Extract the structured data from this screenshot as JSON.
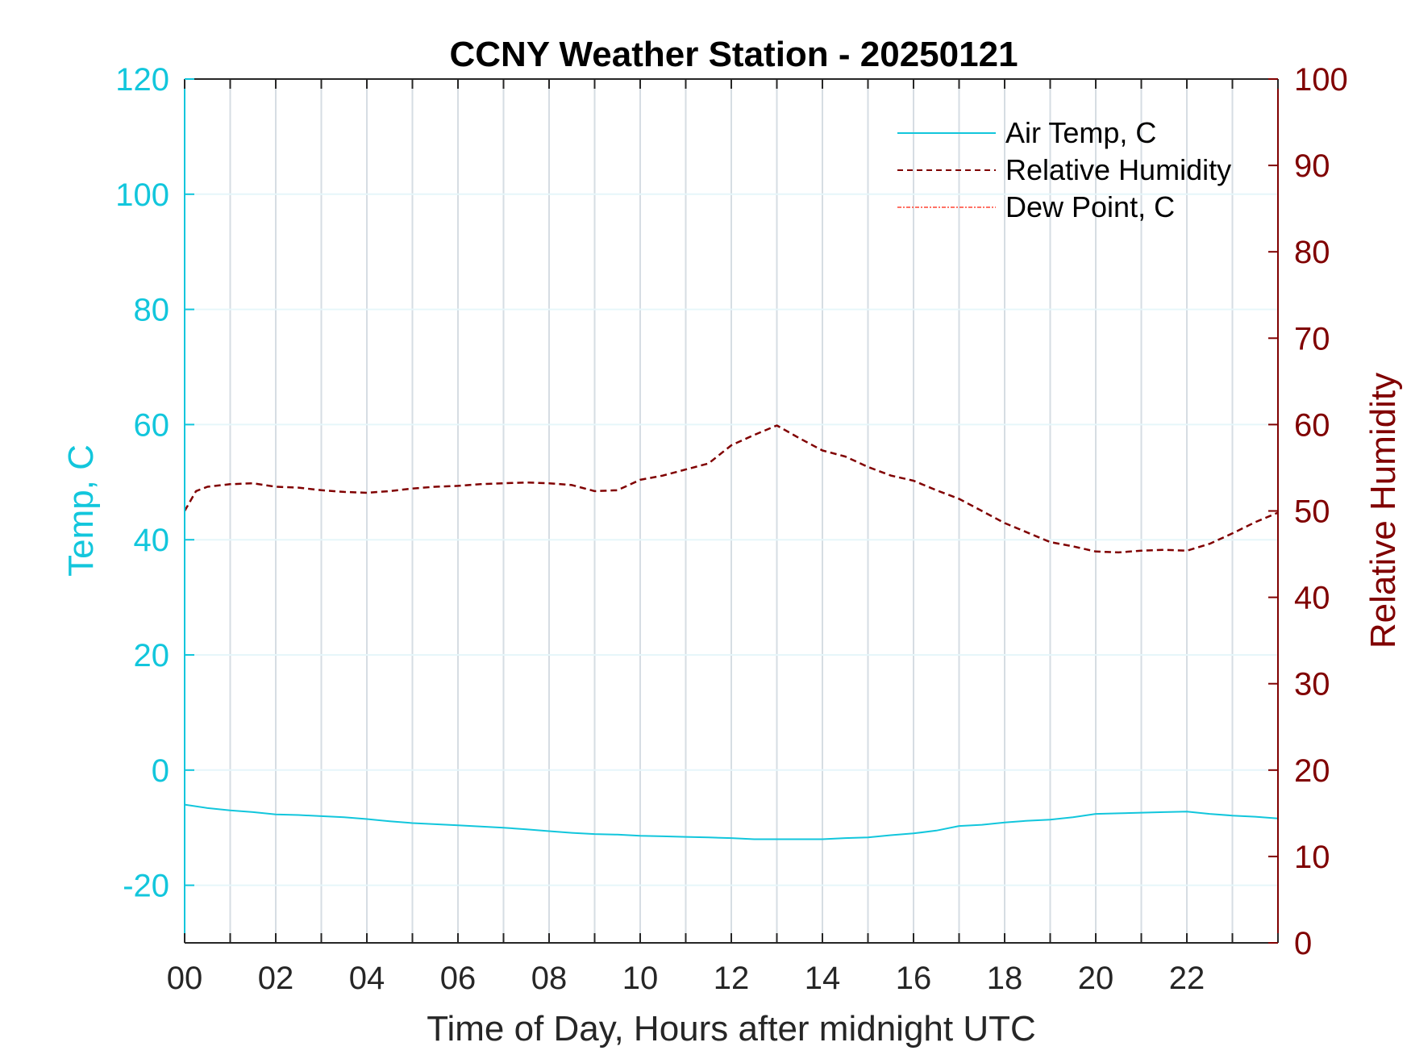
{
  "chart_data": {
    "type": "line",
    "title": "CCNY Weather Station - 20250121",
    "xlabel": "Time of Day, Hours after midnight UTC",
    "ylabel_left": "Temp, C",
    "ylabel_right": "Relative Humidity",
    "xlim": [
      0,
      24
    ],
    "ylim_left": [
      -30,
      120
    ],
    "ylim_right": [
      0,
      100
    ],
    "x_ticks": [
      "00",
      "02",
      "04",
      "06",
      "08",
      "10",
      "12",
      "14",
      "16",
      "18",
      "20",
      "22"
    ],
    "y_ticks_left": [
      "-20",
      "0",
      "20",
      "40",
      "60",
      "80",
      "100",
      "120"
    ],
    "y_ticks_right": [
      "0",
      "10",
      "20",
      "30",
      "40",
      "50",
      "60",
      "70",
      "80",
      "90",
      "100"
    ],
    "grid": true,
    "legend_position": "top-right",
    "colors": {
      "air_temp": "#12c6dc",
      "relative_humidity": "#800000",
      "dew_point": "#ff4433"
    },
    "series": [
      {
        "name": "Air Temp, C",
        "axis": "left",
        "style": "solid",
        "x": [
          0,
          0.5,
          1,
          1.5,
          2,
          2.5,
          3,
          3.5,
          4,
          4.5,
          5,
          5.5,
          6,
          6.5,
          7,
          7.5,
          8,
          8.5,
          9,
          9.5,
          10,
          10.5,
          11,
          11.5,
          12,
          12.5,
          13,
          13.5,
          14,
          14.5,
          15,
          15.5,
          16,
          16.5,
          17,
          17.5,
          18,
          18.5,
          19,
          19.5,
          20,
          20.5,
          21,
          21.5,
          22,
          22.5,
          23,
          23.5,
          24
        ],
        "values": [
          -6.0,
          -6.6,
          -7.0,
          -7.3,
          -7.7,
          -7.8,
          -8.0,
          -8.2,
          -8.5,
          -8.9,
          -9.2,
          -9.4,
          -9.6,
          -9.8,
          -10.0,
          -10.3,
          -10.6,
          -10.9,
          -11.1,
          -11.2,
          -11.4,
          -11.5,
          -11.6,
          -11.7,
          -11.8,
          -12.0,
          -12.0,
          -12.0,
          -12.0,
          -11.8,
          -11.7,
          -11.3,
          -11.0,
          -10.5,
          -9.7,
          -9.5,
          -9.1,
          -8.8,
          -8.6,
          -8.2,
          -7.6,
          -7.5,
          -7.4,
          -7.3,
          -7.2,
          -7.6,
          -7.9,
          -8.1,
          -8.4
        ]
      },
      {
        "name": "Relative Humidity",
        "axis": "right",
        "style": "dashed",
        "x": [
          0,
          0.25,
          0.5,
          1,
          1.5,
          2,
          2.5,
          3,
          3.5,
          4,
          4.5,
          5,
          5.5,
          6,
          6.5,
          7,
          7.5,
          8,
          8.5,
          9,
          9.5,
          10,
          10.5,
          11,
          11.5,
          12,
          12.5,
          13,
          13.5,
          14,
          14.5,
          15,
          15.5,
          16,
          16.5,
          17,
          17.5,
          18,
          18.5,
          19,
          19.5,
          20,
          20.5,
          21,
          21.5,
          22,
          22.5,
          23,
          23.5,
          24
        ],
        "values": [
          50.0,
          52.3,
          52.8,
          53.1,
          53.2,
          52.8,
          52.7,
          52.4,
          52.2,
          52.1,
          52.3,
          52.6,
          52.8,
          52.9,
          53.1,
          53.2,
          53.3,
          53.2,
          53.0,
          52.3,
          52.4,
          53.6,
          54.1,
          54.8,
          55.5,
          57.6,
          58.8,
          59.9,
          58.4,
          57.0,
          56.3,
          55.1,
          54.1,
          53.5,
          52.4,
          51.4,
          50.0,
          48.6,
          47.5,
          46.4,
          45.9,
          45.3,
          45.2,
          45.4,
          45.5,
          45.4,
          46.2,
          47.4,
          48.7,
          49.8
        ]
      },
      {
        "name": "Dew Point, C",
        "axis": "left",
        "style": "dashdot",
        "x": [],
        "values": []
      }
    ]
  }
}
